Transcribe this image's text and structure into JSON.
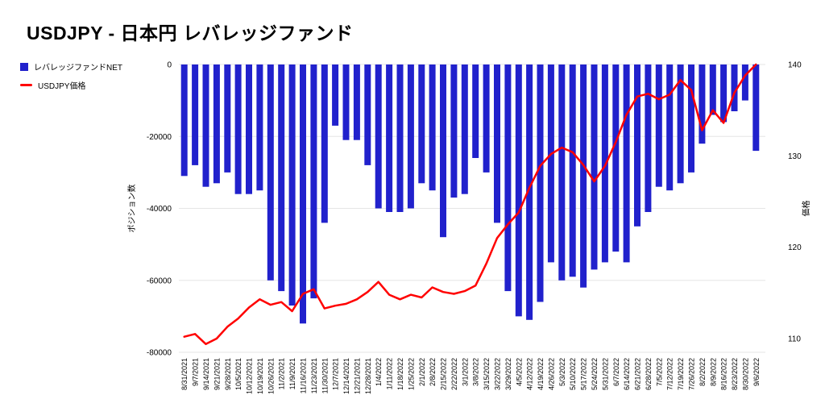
{
  "title": "USDJPY - 日本円 レバレッジファンド",
  "legend": [
    {
      "label": "レバレッジファンドNET"
    },
    {
      "label": "USDJPY価格"
    }
  ],
  "colors": {
    "bar": "#2121cc",
    "line": "#ff0000",
    "grid": "#e6e6e6",
    "text": "#000000",
    "background": "#ffffff"
  },
  "chart_data": {
    "type": "bar",
    "title": "USDJPY - 日本円 レバレッジファンド",
    "grid": true,
    "legend_position": "top-left",
    "categories": [
      "8/31/2021",
      "9/7/2021",
      "9/14/2021",
      "9/21/2021",
      "9/28/2021",
      "10/5/2021",
      "10/12/2021",
      "10/19/2021",
      "10/26/2021",
      "11/2/2021",
      "11/9/2021",
      "11/16/2021",
      "11/23/2021",
      "11/30/2021",
      "12/7/2021",
      "12/14/2021",
      "12/21/2021",
      "12/28/2021",
      "1/4/2022",
      "1/11/2022",
      "1/18/2022",
      "1/25/2022",
      "2/1/2022",
      "2/8/2022",
      "2/15/2022",
      "2/22/2022",
      "3/1/2022",
      "3/8/2022",
      "3/15/2022",
      "3/22/2022",
      "3/29/2022",
      "4/5/2022",
      "4/12/2022",
      "4/19/2022",
      "4/26/2022",
      "5/3/2022",
      "5/10/2022",
      "5/17/2022",
      "5/24/2022",
      "5/31/2022",
      "6/7/2022",
      "6/14/2022",
      "6/21/2022",
      "6/28/2022",
      "7/5/2022",
      "7/12/2022",
      "7/19/2022",
      "7/26/2022",
      "8/2/2022",
      "8/9/2022",
      "8/16/2022",
      "8/23/2022",
      "8/30/2022",
      "9/6/2022"
    ],
    "series": [
      {
        "name": "レバレッジファンドNET",
        "type": "bar",
        "axis": "left",
        "color": "#2121cc",
        "values": [
          -31000,
          -28000,
          -34000,
          -33000,
          -30000,
          -36000,
          -36000,
          -35000,
          -60000,
          -63000,
          -67000,
          -72000,
          -65000,
          -44000,
          -17000,
          -21000,
          -21000,
          -28000,
          -40000,
          -41000,
          -41000,
          -40000,
          -33000,
          -35000,
          -48000,
          -37000,
          -36000,
          -26000,
          -30000,
          -44000,
          -63000,
          -70000,
          -71000,
          -66000,
          -55000,
          -60000,
          -59000,
          -62000,
          -57000,
          -55000,
          -52000,
          -55000,
          -45000,
          -41000,
          -34000,
          -35000,
          -33000,
          -30000,
          -22000,
          -14000,
          -16000,
          -13000,
          -10000,
          -24000
        ]
      },
      {
        "name": "USDJPY価格",
        "type": "line",
        "axis": "right",
        "color": "#ff0000",
        "values": [
          110.2,
          110.5,
          109.4,
          110.0,
          111.3,
          112.2,
          113.4,
          114.3,
          113.7,
          114.0,
          113.0,
          114.9,
          115.4,
          113.3,
          113.6,
          113.8,
          114.3,
          115.1,
          116.2,
          114.8,
          114.3,
          114.8,
          114.5,
          115.6,
          115.1,
          114.9,
          115.2,
          115.8,
          118.2,
          121.0,
          122.5,
          123.8,
          126.5,
          128.9,
          130.2,
          130.9,
          130.4,
          129.0,
          127.2,
          128.9,
          131.5,
          134.5,
          136.5,
          136.8,
          136.2,
          136.7,
          138.3,
          137.2,
          132.8,
          135.0,
          133.6,
          136.9,
          138.8,
          140.0
        ]
      }
    ],
    "left_axis": {
      "title": "ポジション数",
      "min": -80000,
      "max": 0,
      "ticks": [
        0,
        -20000,
        -40000,
        -60000,
        -80000
      ]
    },
    "right_axis": {
      "title": "価格",
      "min": 108.5,
      "max": 140,
      "ticks": [
        140,
        130,
        120,
        110
      ]
    }
  }
}
